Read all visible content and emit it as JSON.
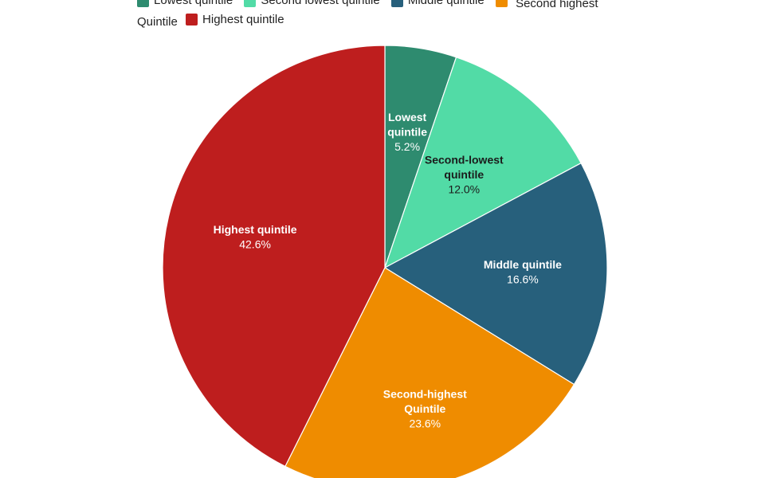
{
  "chart_data": {
    "type": "pie",
    "title": "",
    "legend_position": "top",
    "slices": [
      {
        "name": "Lowest quintile",
        "legend_label": "Lowest quintile",
        "label_lines": [
          "Lowest",
          "quintile"
        ],
        "value": 5.2,
        "value_label": "5.2%",
        "color": "#2e8b6f",
        "label_color": "#ffffff"
      },
      {
        "name": "Second-lowest quintile",
        "legend_label": "Second lowest quintile",
        "label_lines": [
          "Second-lowest",
          "quintile"
        ],
        "value": 12.0,
        "value_label": "12.0%",
        "color": "#52dba6",
        "label_color": "#1b1b1b"
      },
      {
        "name": "Middle quintile",
        "legend_label": "Middle quintile",
        "label_lines": [
          "Middle quintile"
        ],
        "value": 16.6,
        "value_label": "16.6%",
        "color": "#27607c",
        "label_color": "#ffffff"
      },
      {
        "name": "Second-highest Quintile",
        "legend_label": "Second highest Quintile",
        "label_lines": [
          "Second-highest",
          "Quintile"
        ],
        "value": 23.6,
        "value_label": "23.6%",
        "color": "#ef8c00",
        "label_color": "#ffffff"
      },
      {
        "name": "Highest quintile",
        "legend_label": "Highest quintile",
        "label_lines": [
          "Highest quintile"
        ],
        "value": 42.6,
        "value_label": "42.6%",
        "color": "#be1e1e",
        "label_color": "#ffffff"
      }
    ]
  }
}
